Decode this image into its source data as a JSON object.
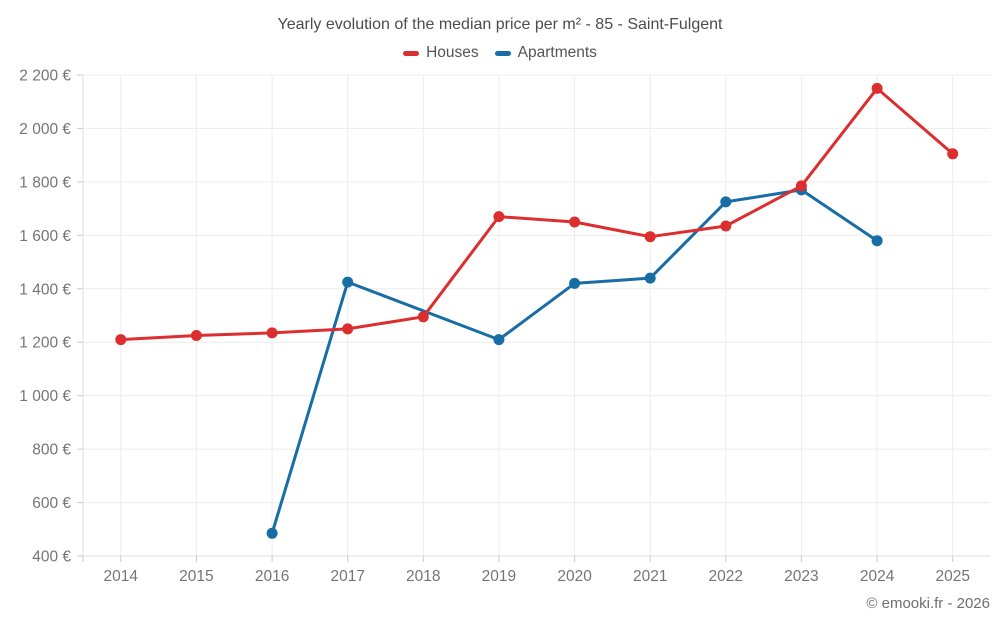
{
  "title": "Yearly evolution of the median price per m² - 85 - Saint-Fulgent",
  "footer": "© emooki.fr - 2026",
  "chart_data": {
    "type": "line",
    "title": "Yearly evolution of the median price per m² - 85 - Saint-Fulgent",
    "x": [
      2014,
      2015,
      2016,
      2017,
      2018,
      2019,
      2020,
      2021,
      2022,
      2023,
      2024,
      2025
    ],
    "series": [
      {
        "name": "Houses",
        "color": "#dc2e2e",
        "values": [
          1210,
          1225,
          1235,
          1250,
          1295,
          1670,
          1650,
          1595,
          1635,
          1785,
          2150,
          1905
        ]
      },
      {
        "name": "Apartments",
        "color": "#176da4",
        "values": [
          null,
          null,
          485,
          1425,
          null,
          1210,
          1420,
          1440,
          1725,
          1770,
          1580,
          null
        ]
      }
    ],
    "ylim": [
      400,
      2200
    ],
    "y_ticks": [
      400,
      600,
      800,
      1000,
      1200,
      1400,
      1600,
      1800,
      2000,
      2200
    ],
    "y_tick_suffix": "€",
    "grid": true,
    "legend_position": "top",
    "marker": "circle"
  }
}
